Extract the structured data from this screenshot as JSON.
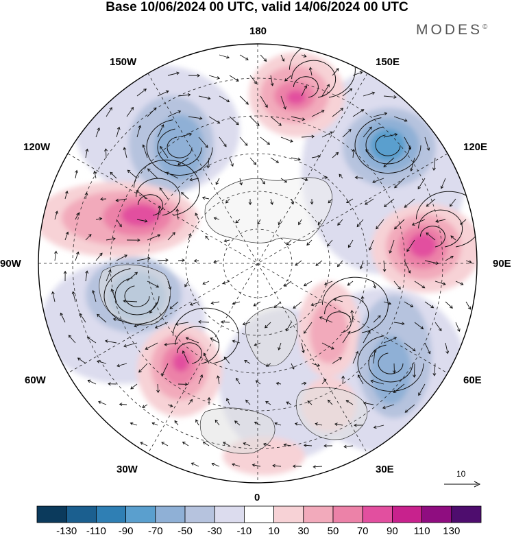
{
  "title": "Base 10/06/2024 00 UTC, valid 14/06/2024 00 UTC",
  "brand": {
    "name": "MODES",
    "mark": "©"
  },
  "longitude_labels": {
    "n180": "180",
    "w150": "150W",
    "e150": "150E",
    "w120": "120W",
    "e120": "120E",
    "w90": "90W",
    "e90": "90E",
    "w60": "60W",
    "e60": "60E",
    "w30": "30W",
    "e30": "30E",
    "s0": "0"
  },
  "vector_scale": {
    "label": "10",
    "icon": "arrow-right-icon"
  },
  "colorbar": {
    "tick_labels": [
      "-130",
      "-110",
      "-90",
      "-70",
      "-50",
      "-30",
      "-10",
      "10",
      "30",
      "50",
      "70",
      "90",
      "110",
      "130"
    ],
    "colors": [
      "#0b3a5c",
      "#1b5f8f",
      "#2f7fb4",
      "#5a9fce",
      "#8fb0d6",
      "#b6c3de",
      "#dcdcee",
      "#ffffff",
      "#f7d2d6",
      "#f2aabb",
      "#ec82a8",
      "#e24f9f",
      "#c8228d",
      "#8f0d80",
      "#4e0d6e"
    ]
  },
  "anomaly_centers": [
    {
      "name": "positive-anomaly-north-pacific",
      "value": 90
    },
    {
      "name": "negative-anomaly-east-siberia",
      "value": -70
    },
    {
      "name": "positive-anomaly-central-siberia",
      "value": 90
    },
    {
      "name": "negative-anomaly-alaska",
      "value": -50
    },
    {
      "name": "positive-anomaly-canada",
      "value": 90
    },
    {
      "name": "negative-anomaly-hudson-bay",
      "value": -50
    },
    {
      "name": "positive-anomaly-north-atlantic",
      "value": 90
    },
    {
      "name": "negative-anomaly-west-siberia",
      "value": -30
    },
    {
      "name": "positive-anomaly-scandinavia",
      "value": 30
    }
  ]
}
